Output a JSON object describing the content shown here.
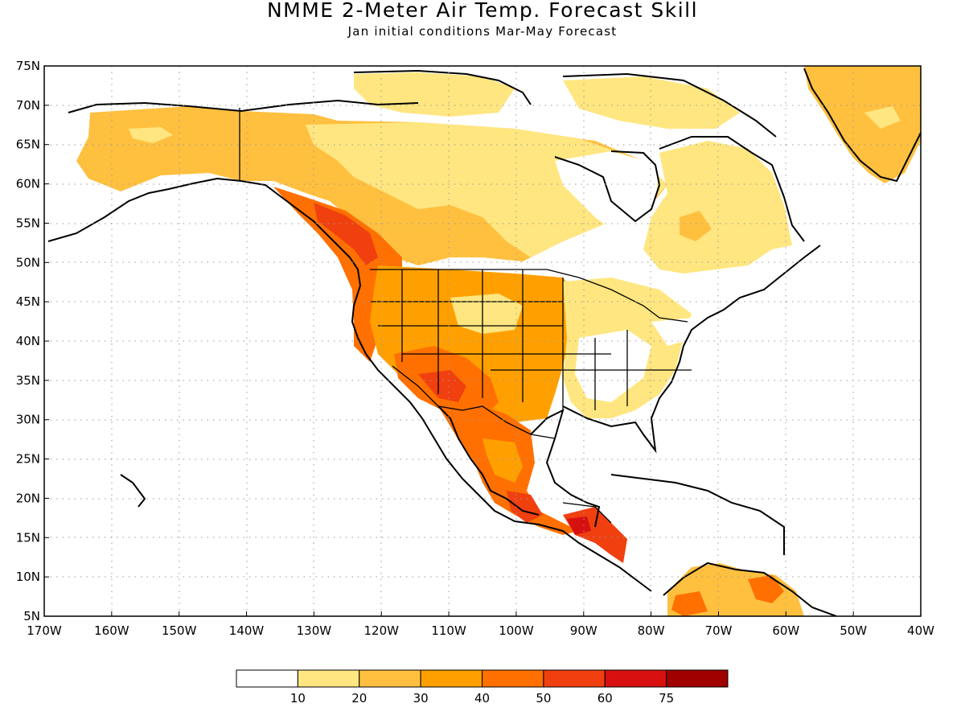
{
  "header": {
    "title": "NMME 2-Meter Air Temp. Forecast Skill",
    "subtitle": "Jan initial conditions  Mar-May Forecast"
  },
  "map": {
    "lon_range": [
      -170,
      -40
    ],
    "lat_range": [
      5,
      75
    ],
    "lat_ticks": [
      "5N",
      "10N",
      "15N",
      "20N",
      "25N",
      "30N",
      "35N",
      "40N",
      "45N",
      "50N",
      "55N",
      "60N",
      "65N",
      "70N",
      "75N"
    ],
    "lon_ticks": [
      "170W",
      "160W",
      "150W",
      "140W",
      "130W",
      "120W",
      "110W",
      "100W",
      "90W",
      "80W",
      "70W",
      "60W",
      "50W",
      "40W"
    ],
    "grid": "dotted"
  },
  "legend": {
    "labels": [
      "10",
      "20",
      "30",
      "40",
      "50",
      "60",
      "75"
    ],
    "colors": [
      "#ffffff",
      "#ffe680",
      "#ffc040",
      "#ffa000",
      "#ff7000",
      "#f04010",
      "#d81010",
      "#a00000"
    ]
  }
}
